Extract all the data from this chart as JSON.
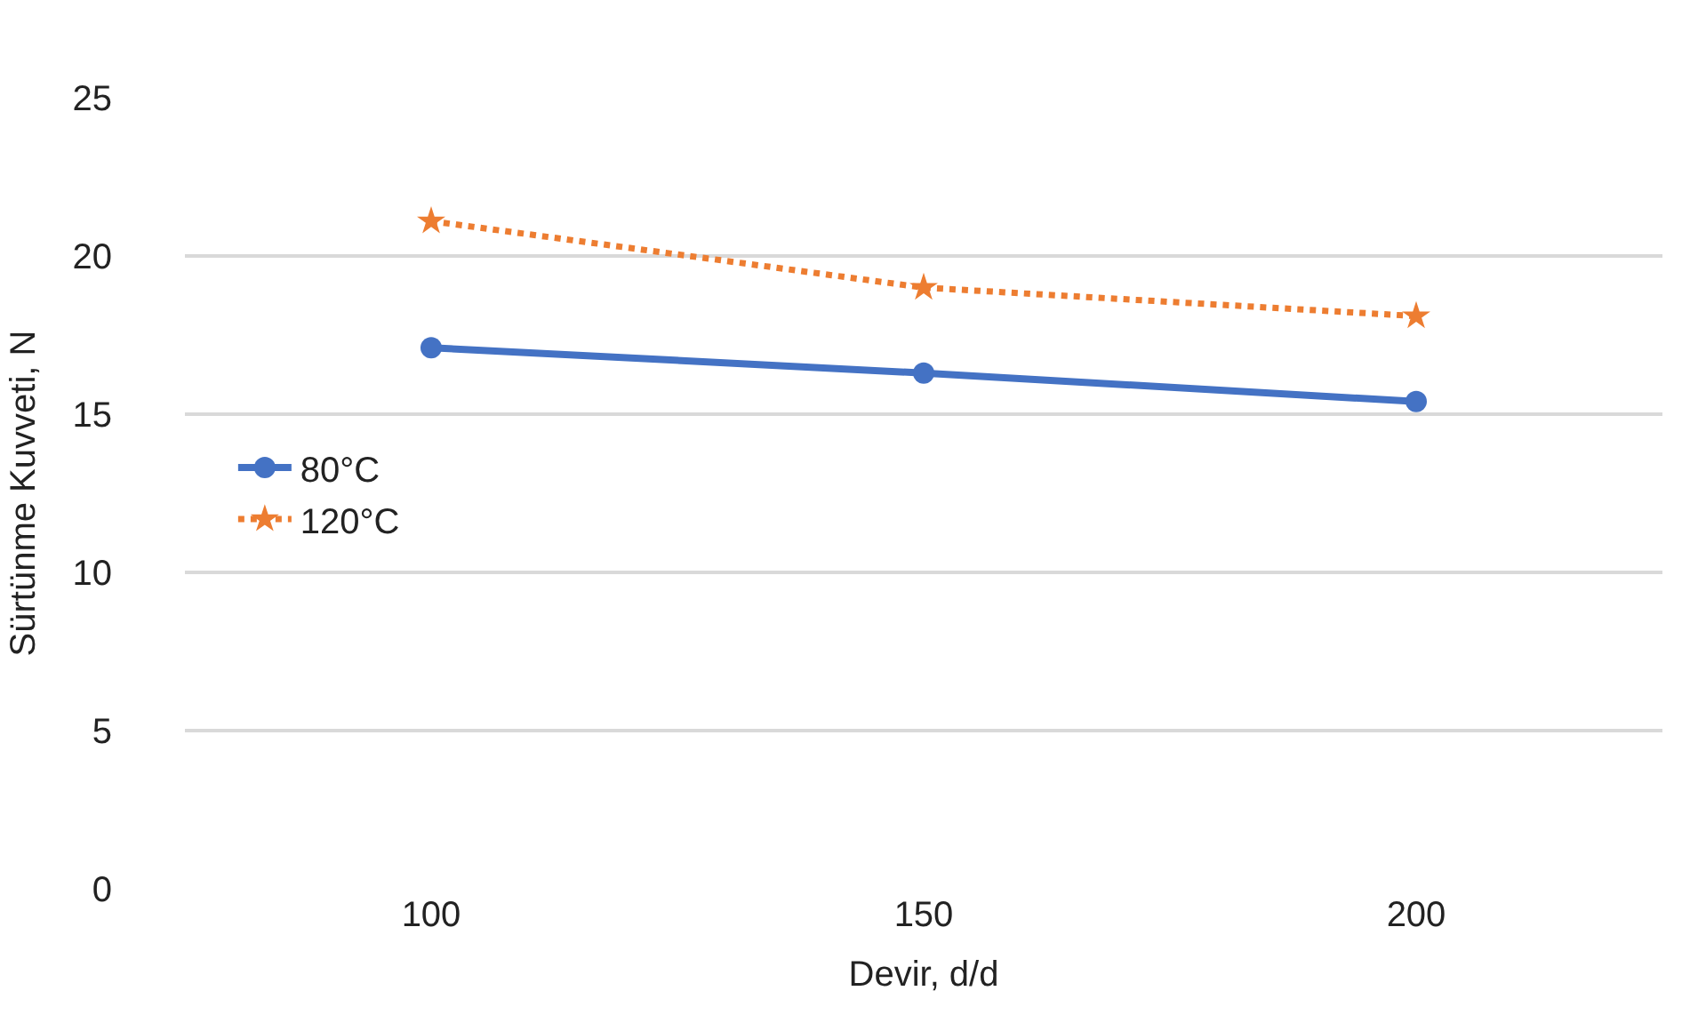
{
  "chart_data": {
    "type": "line",
    "xlabel": "Devir, d/d",
    "ylabel": "Sürtünme Kuvveti, N",
    "categories": [
      "100",
      "150",
      "200"
    ],
    "series": [
      {
        "name": "80°C",
        "color": "#4472c4",
        "values": [
          17.1,
          16.3,
          15.4
        ],
        "marker": "circle",
        "line_style": "solid"
      },
      {
        "name": "120°C",
        "color": "#ed7d31",
        "values": [
          21.1,
          19.0,
          18.1
        ],
        "marker": "star",
        "line_style": "dotted"
      }
    ],
    "ylim": [
      0,
      25
    ],
    "yticks": [
      0,
      5,
      10,
      15,
      20,
      25
    ],
    "grid": "y",
    "legend": "left"
  }
}
